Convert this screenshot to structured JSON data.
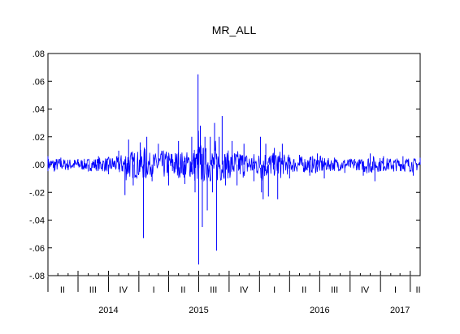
{
  "chart_data": {
    "type": "line",
    "title": "MR_ALL",
    "xlabel": "",
    "ylabel": "",
    "ylim": [
      -0.08,
      0.08
    ],
    "y_ticks": [
      ".08",
      ".06",
      ".04",
      ".02",
      ".00",
      "-.02",
      "-.04",
      "-.06",
      "-.08"
    ],
    "y_tick_values": [
      0.08,
      0.06,
      0.04,
      0.02,
      0.0,
      -0.02,
      -0.04,
      -0.06,
      -0.08
    ],
    "x_range": [
      "2014-04-01",
      "2017-05-01"
    ],
    "quarter_labels": [
      {
        "label": "II",
        "date": "2014-05-15"
      },
      {
        "label": "III",
        "date": "2014-08-15"
      },
      {
        "label": "IV",
        "date": "2014-11-15"
      },
      {
        "label": "I",
        "date": "2015-02-15"
      },
      {
        "label": "II",
        "date": "2015-05-15"
      },
      {
        "label": "III",
        "date": "2015-08-15"
      },
      {
        "label": "IV",
        "date": "2015-11-15"
      },
      {
        "label": "I",
        "date": "2016-02-15"
      },
      {
        "label": "II",
        "date": "2016-05-15"
      },
      {
        "label": "III",
        "date": "2016-08-15"
      },
      {
        "label": "IV",
        "date": "2016-11-15"
      },
      {
        "label": "I",
        "date": "2017-02-15"
      },
      {
        "label": "II",
        "date": "2017-04-25"
      }
    ],
    "year_labels": [
      {
        "label": "2014",
        "date": "2014-10-01"
      },
      {
        "label": "2015",
        "date": "2015-07-01"
      },
      {
        "label": "2016",
        "date": "2016-07-01"
      },
      {
        "label": "2017",
        "date": "2017-03-01"
      }
    ],
    "series": [
      {
        "name": "MR_ALL",
        "color": "#0000ff",
        "points": [
          [
            "2014-04-01",
            0.006
          ],
          [
            "2014-04-20",
            -0.005
          ],
          [
            "2014-05-10",
            0.005
          ],
          [
            "2014-06-01",
            -0.004
          ],
          [
            "2014-07-01",
            0.004
          ],
          [
            "2014-08-01",
            -0.005
          ],
          [
            "2014-09-01",
            0.006
          ],
          [
            "2014-10-01",
            -0.007
          ],
          [
            "2014-11-01",
            0.01
          ],
          [
            "2014-11-20",
            -0.022
          ],
          [
            "2014-12-01",
            0.018
          ],
          [
            "2014-12-15",
            -0.015
          ],
          [
            "2015-01-05",
            0.016
          ],
          [
            "2015-01-15",
            -0.053
          ],
          [
            "2015-01-25",
            0.02
          ],
          [
            "2015-02-10",
            -0.012
          ],
          [
            "2015-03-01",
            0.015
          ],
          [
            "2015-04-01",
            -0.015
          ],
          [
            "2015-05-01",
            0.017
          ],
          [
            "2015-05-20",
            -0.014
          ],
          [
            "2015-06-10",
            0.02
          ],
          [
            "2015-06-20",
            -0.02
          ],
          [
            "2015-06-29",
            0.065
          ],
          [
            "2015-07-01",
            -0.072
          ],
          [
            "2015-07-06",
            0.028
          ],
          [
            "2015-07-12",
            -0.045
          ],
          [
            "2015-07-20",
            0.02
          ],
          [
            "2015-07-27",
            -0.033
          ],
          [
            "2015-08-05",
            0.02
          ],
          [
            "2015-08-12",
            -0.02
          ],
          [
            "2015-08-18",
            0.03
          ],
          [
            "2015-08-24",
            -0.062
          ],
          [
            "2015-09-01",
            0.02
          ],
          [
            "2015-09-10",
            0.035
          ],
          [
            "2015-09-20",
            -0.015
          ],
          [
            "2015-10-10",
            0.017
          ],
          [
            "2015-10-25",
            -0.015
          ],
          [
            "2015-11-15",
            0.015
          ],
          [
            "2015-12-15",
            -0.012
          ],
          [
            "2016-01-04",
            0.02
          ],
          [
            "2016-01-07",
            -0.02
          ],
          [
            "2016-01-12",
            -0.025
          ],
          [
            "2016-01-20",
            0.015
          ],
          [
            "2016-01-28",
            -0.023
          ],
          [
            "2016-02-15",
            0.012
          ],
          [
            "2016-02-25",
            -0.025
          ],
          [
            "2016-03-10",
            0.015
          ],
          [
            "2016-04-01",
            -0.01
          ],
          [
            "2016-05-01",
            0.007
          ],
          [
            "2016-06-01",
            -0.008
          ],
          [
            "2016-06-24",
            0.008
          ],
          [
            "2016-07-15",
            -0.01
          ],
          [
            "2016-08-15",
            0.005
          ],
          [
            "2016-09-15",
            -0.006
          ],
          [
            "2016-10-15",
            0.004
          ],
          [
            "2016-11-10",
            -0.008
          ],
          [
            "2016-12-01",
            0.008
          ],
          [
            "2016-12-15",
            -0.012
          ],
          [
            "2017-01-10",
            0.006
          ],
          [
            "2017-02-10",
            -0.005
          ],
          [
            "2017-03-10",
            0.006
          ],
          [
            "2017-04-10",
            -0.008
          ],
          [
            "2017-05-01",
            0.005
          ]
        ]
      }
    ],
    "grid": false,
    "legend": "none"
  }
}
